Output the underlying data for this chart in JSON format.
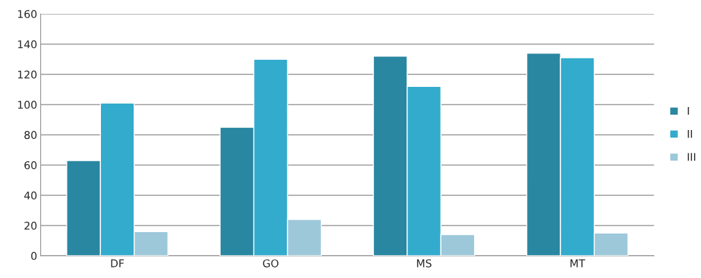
{
  "chart_data": {
    "type": "bar",
    "categories": [
      "DF",
      "GO",
      "MS",
      "MT"
    ],
    "series": [
      {
        "name": "I",
        "color": "#2a87a2",
        "values": [
          63,
          85,
          132,
          134
        ]
      },
      {
        "name": "II",
        "color": "#33abcd",
        "values": [
          101,
          130,
          112,
          131
        ]
      },
      {
        "name": "III",
        "color": "#9cc8da",
        "values": [
          16,
          24,
          14,
          15
        ]
      }
    ],
    "ylim": [
      0,
      160
    ],
    "yticks": [
      0,
      20,
      40,
      60,
      80,
      100,
      120,
      140,
      160
    ],
    "grid": "y",
    "legend": "right"
  }
}
